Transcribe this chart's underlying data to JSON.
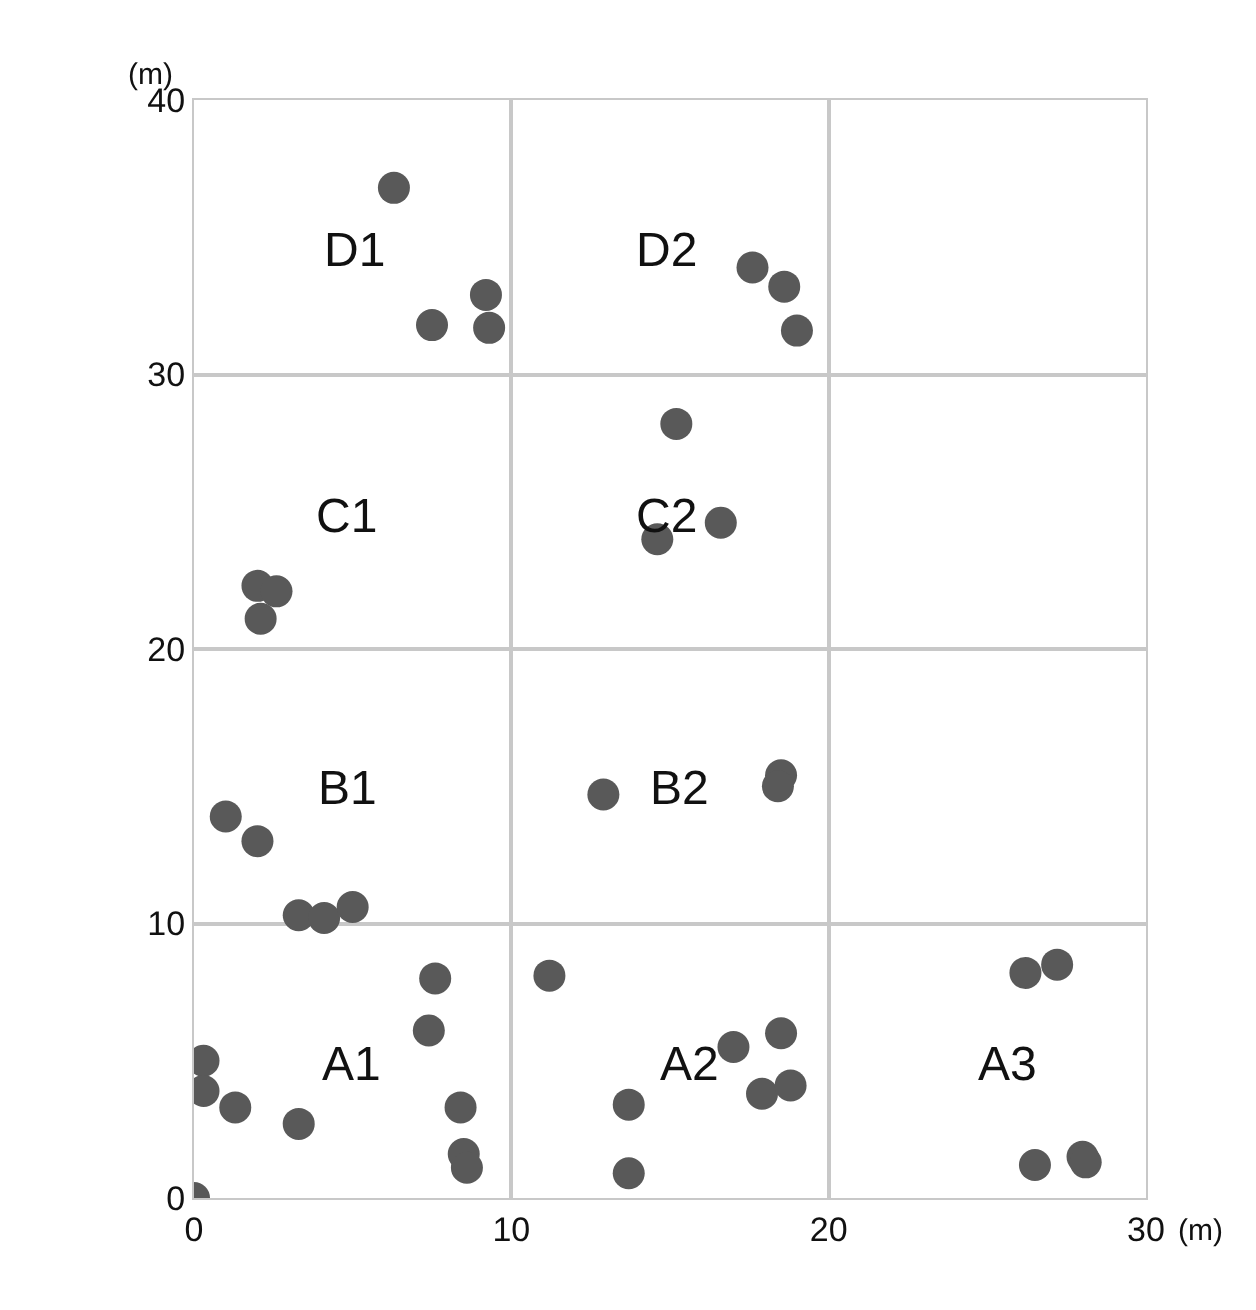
{
  "chart_data": {
    "type": "scatter",
    "xlabel": "(m)",
    "ylabel": "(m)",
    "marker": "circle",
    "grid": true,
    "xlim": [
      0,
      30
    ],
    "ylim": [
      0,
      40
    ],
    "xticks": [
      0,
      10,
      20,
      30
    ],
    "yticks": [
      0,
      10,
      20,
      30,
      40
    ],
    "series": [
      {
        "color": "#595959",
        "x": [
          6.3,
          7.5,
          9.2,
          9.3,
          17.6,
          18.6,
          19.0,
          15.2,
          16.6,
          14.6,
          2.0,
          2.6,
          2.1,
          1.0,
          2.0,
          3.3,
          4.1,
          5.0,
          12.9,
          18.5,
          18.4,
          0.3,
          0.3,
          1.3,
          3.3,
          7.6,
          7.4,
          8.4,
          8.5,
          8.6,
          0,
          11.2,
          13.7,
          13.7,
          17.0,
          18.5,
          17.9,
          18.8,
          26.2,
          27.2,
          26.5,
          28.0,
          28.1
        ],
        "values": [
          36.8,
          31.8,
          32.9,
          31.7,
          33.9,
          33.2,
          31.6,
          28.2,
          24.6,
          24.0,
          22.3,
          22.1,
          21.1,
          13.9,
          13.0,
          10.3,
          10.2,
          10.6,
          14.7,
          15.4,
          15.0,
          5.0,
          3.9,
          3.3,
          2.7,
          8.0,
          6.1,
          3.3,
          1.6,
          1.1,
          0,
          8.1,
          3.4,
          0.9,
          5.5,
          6.0,
          3.8,
          4.1,
          8.2,
          8.5,
          1.2,
          1.5,
          1.3
        ]
      }
    ],
    "annotations": [
      "D1",
      "D2",
      "C1",
      "C2",
      "B1",
      "B2",
      "A1",
      "A2",
      "A3"
    ]
  }
}
